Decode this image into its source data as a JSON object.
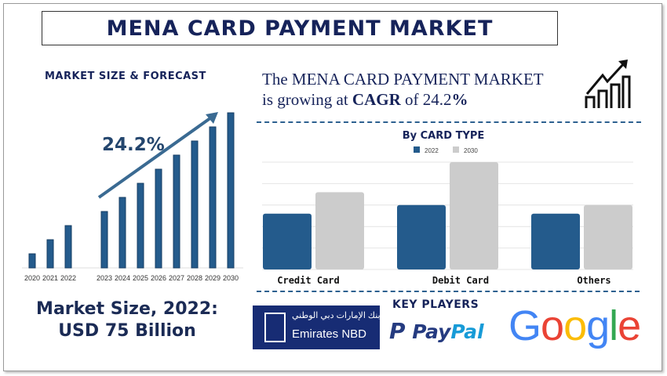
{
  "title": "MENA CARD PAYMENT MARKET",
  "left": {
    "subtitle": "MARKET SIZE & FORECAST",
    "market_size_line1": "Market Size, 2022:",
    "market_size_line2": "USD 75 Billion"
  },
  "headline": {
    "line1": "The MENA CARD PAYMENT MARKET",
    "line2_pre": "is growing at ",
    "cagr_word": "CAGR",
    "line2_mid": " of 24.2",
    "percent": "%"
  },
  "key_players": {
    "title": "KEY PLAYERS",
    "logos": [
      "Emirates NBD",
      "PayPal",
      "Google"
    ],
    "emirates_arabic": "بنك الإمارات دبي الوطني"
  },
  "colors": {
    "navy": "#16235a",
    "bar_blue": "#245b8c",
    "bar_gray": "#cccccc",
    "arrow": "#3a6a92"
  },
  "chart_data": [
    {
      "type": "bar",
      "title": "",
      "categories": [
        "2020",
        "2021",
        "2022",
        "2023",
        "2024",
        "2025",
        "2026",
        "2027",
        "2028",
        "2029",
        "2030"
      ],
      "values": [
        1,
        2,
        3,
        4,
        5,
        6,
        7,
        8,
        9,
        10,
        11
      ],
      "annotation": "24.2%",
      "grid": false
    },
    {
      "type": "bar",
      "title": "By CARD TYPE",
      "categories": [
        "Credit Card",
        "Debit Card",
        "Others"
      ],
      "series": [
        {
          "name": "2022",
          "values": [
            2.6,
            3.0,
            2.6
          ]
        },
        {
          "name": "2030",
          "values": [
            3.6,
            5.0,
            3.0
          ]
        }
      ],
      "ylim": [
        0,
        5
      ],
      "grid": true,
      "legend": "top"
    }
  ]
}
